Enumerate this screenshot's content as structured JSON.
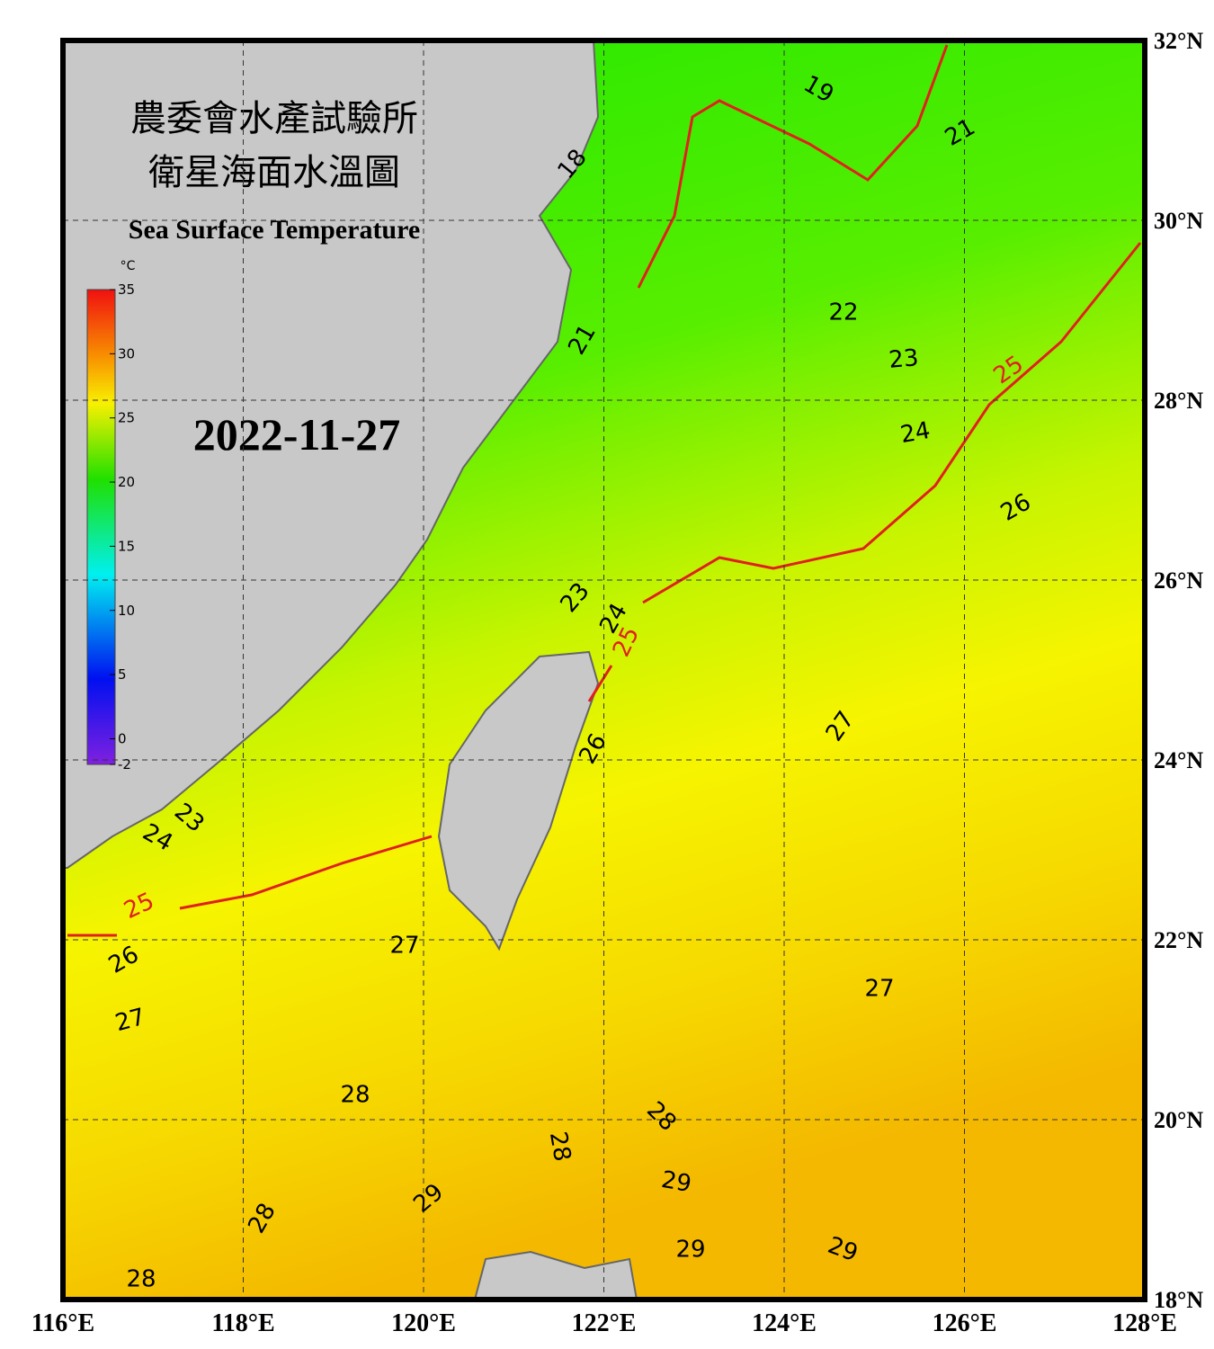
{
  "header": {
    "title_line1": "農委會水產試驗所",
    "title_line2": "衛星海面水溫圖",
    "title_en": "Sea Surface Temperature",
    "date": "2022-11-27"
  },
  "colorbar": {
    "unit": "°C",
    "range": [
      -2,
      35
    ],
    "ticks": [
      35,
      30,
      25,
      20,
      15,
      10,
      5,
      0,
      -2
    ]
  },
  "map": {
    "lon_range": [
      116,
      128
    ],
    "lat_range": [
      18,
      32
    ],
    "lon_ticks": [
      {
        "value": 116,
        "label": "116°E"
      },
      {
        "value": 118,
        "label": "118°E"
      },
      {
        "value": 120,
        "label": "120°E"
      },
      {
        "value": 122,
        "label": "122°E"
      },
      {
        "value": 124,
        "label": "124°E"
      },
      {
        "value": 126,
        "label": "126°E"
      },
      {
        "value": 128,
        "label": "128°E"
      }
    ],
    "lat_ticks": [
      {
        "value": 32,
        "label": "32°N"
      },
      {
        "value": 30,
        "label": "30°N"
      },
      {
        "value": 28,
        "label": "28°N"
      },
      {
        "value": 26,
        "label": "26°N"
      },
      {
        "value": 24,
        "label": "24°N"
      },
      {
        "value": 22,
        "label": "22°N"
      },
      {
        "value": 20,
        "label": "20°N"
      },
      {
        "value": 18,
        "label": "18°N"
      }
    ],
    "contour_labels": [
      "19",
      "21",
      "18",
      "22",
      "23",
      "25",
      "24",
      "26",
      "23",
      "24",
      "25",
      "27",
      "26",
      "23",
      "24",
      "25",
      "27",
      "26",
      "27",
      "27",
      "28",
      "28",
      "28",
      "29",
      "29",
      "28",
      "29",
      "29",
      "28",
      "21"
    ]
  }
}
